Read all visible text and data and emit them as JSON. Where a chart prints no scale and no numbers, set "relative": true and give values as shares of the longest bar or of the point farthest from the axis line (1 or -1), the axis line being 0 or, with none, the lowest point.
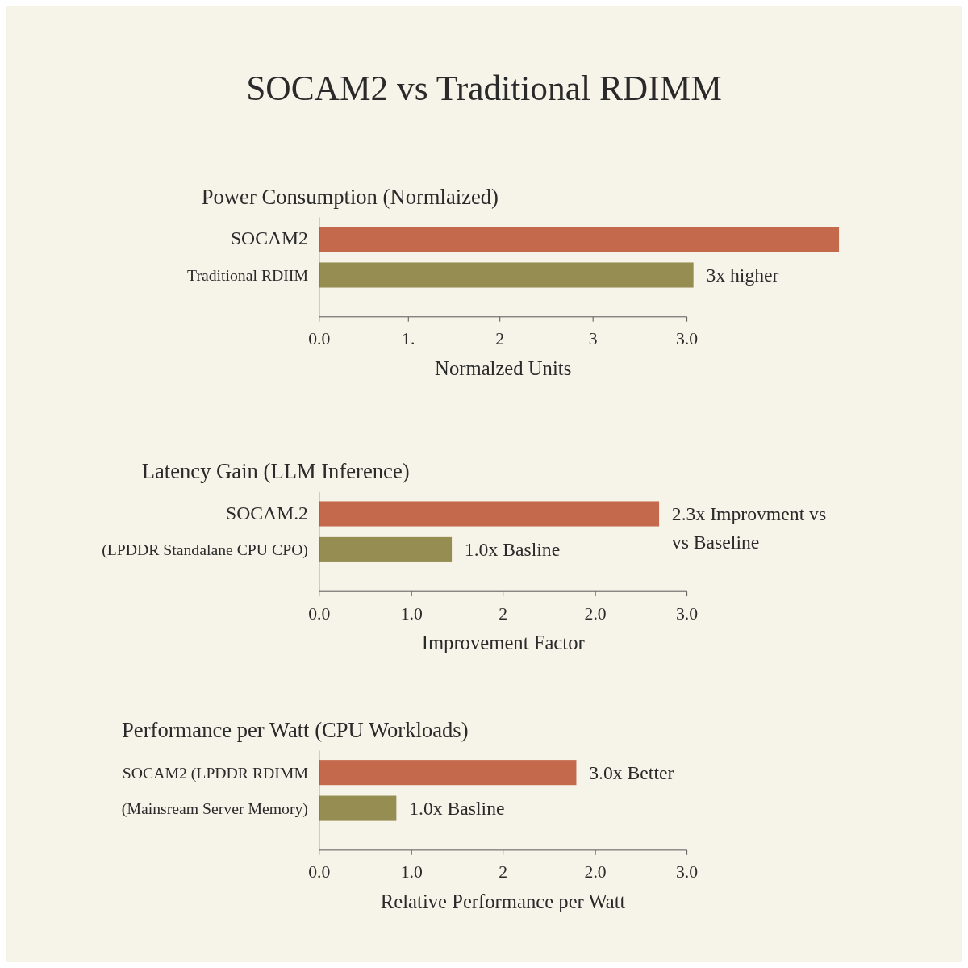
{
  "chart_data": [
    {
      "type": "bar",
      "orientation": "horizontal",
      "relative": true,
      "title": "SOCAM2 vs Traditional RDIMM",
      "subtitle": "Power Consumption (Normlaized)",
      "categories": [
        "SOCAM2",
        "Traditional RDIIM"
      ],
      "values": [
        1,
        0.72
      ],
      "colors": [
        "#c4694c",
        "#968d52"
      ],
      "xlabel": "Normalzed Units",
      "annotations": [
        "3x higher",
        "0.0",
        "1.",
        "2",
        "3",
        "3.0"
      ]
    },
    {
      "type": "bar",
      "orientation": "horizontal",
      "relative": true,
      "title": "Latency Gain (LLM Inference)",
      "categories": [
        "SOCAM.2",
        "(LPDDR Standalane CPU CPO)"
      ],
      "values": [
        1,
        0.39
      ],
      "colors": [
        "#c4694c",
        "#968d52"
      ],
      "xlabel": "Improvement Factor",
      "annotations": [
        "2.3x Improvment vs\nvs Baseline",
        "1.0x Basline",
        "0.0",
        "1.0",
        "2",
        "2.0",
        "3.0"
      ]
    },
    {
      "type": "bar",
      "orientation": "horizontal",
      "relative": true,
      "title": "Performance per Watt (CPU Workloads)",
      "categories": [
        "SOCAM2 (LPDDR RDIMM",
        "(Mainsream Server Memory)"
      ],
      "values": [
        1,
        0.3
      ],
      "colors": [
        "#c4694c",
        "#968d52"
      ],
      "xlabel": "Relative Performance per Watt",
      "annotations": [
        "3.0x Better",
        "1.0x Basline",
        "0.0",
        "1.0",
        "2",
        "2.0",
        "3.0"
      ]
    }
  ]
}
